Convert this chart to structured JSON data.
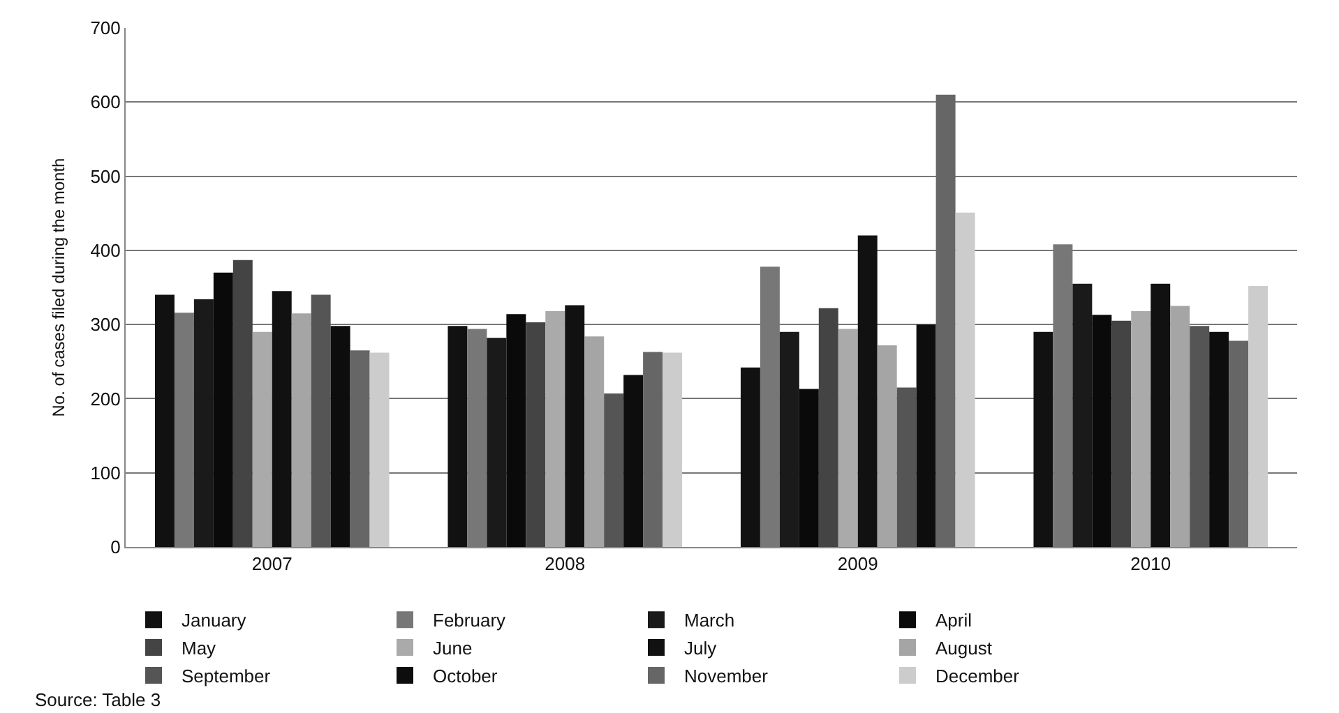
{
  "chart_data": {
    "type": "bar",
    "ylabel": "No. of cases filed during the month",
    "categories": [
      "2007",
      "2008",
      "2009",
      "2010"
    ],
    "series": [
      {
        "name": "January",
        "color": "#111111",
        "values": [
          340,
          298,
          242,
          290
        ]
      },
      {
        "name": "February",
        "color": "#777777",
        "values": [
          316,
          294,
          378,
          408
        ]
      },
      {
        "name": "March",
        "color": "#1a1a1a",
        "values": [
          334,
          282,
          290,
          355
        ]
      },
      {
        "name": "April",
        "color": "#0a0a0a",
        "values": [
          370,
          314,
          213,
          313
        ]
      },
      {
        "name": "May",
        "color": "#444444",
        "values": [
          387,
          303,
          322,
          305
        ]
      },
      {
        "name": "June",
        "color": "#aaaaaa",
        "values": [
          290,
          318,
          294,
          318
        ]
      },
      {
        "name": "July",
        "color": "#111111",
        "values": [
          345,
          326,
          420,
          355
        ]
      },
      {
        "name": "August",
        "color": "#a5a5a5",
        "values": [
          315,
          284,
          272,
          325
        ]
      },
      {
        "name": "September",
        "color": "#555555",
        "values": [
          340,
          207,
          215,
          298
        ]
      },
      {
        "name": "October",
        "color": "#0d0d0d",
        "values": [
          298,
          232,
          300,
          290
        ]
      },
      {
        "name": "November",
        "color": "#666666",
        "values": [
          265,
          263,
          610,
          278
        ]
      },
      {
        "name": "December",
        "color": "#cccccc",
        "values": [
          262,
          262,
          451,
          352
        ]
      }
    ],
    "ylim": [
      0,
      700
    ],
    "yticks": [
      0,
      100,
      200,
      300,
      400,
      500,
      600,
      700
    ],
    "grid": "y",
    "legend": "bottom",
    "annotations": [
      "Source: Table 3"
    ]
  }
}
